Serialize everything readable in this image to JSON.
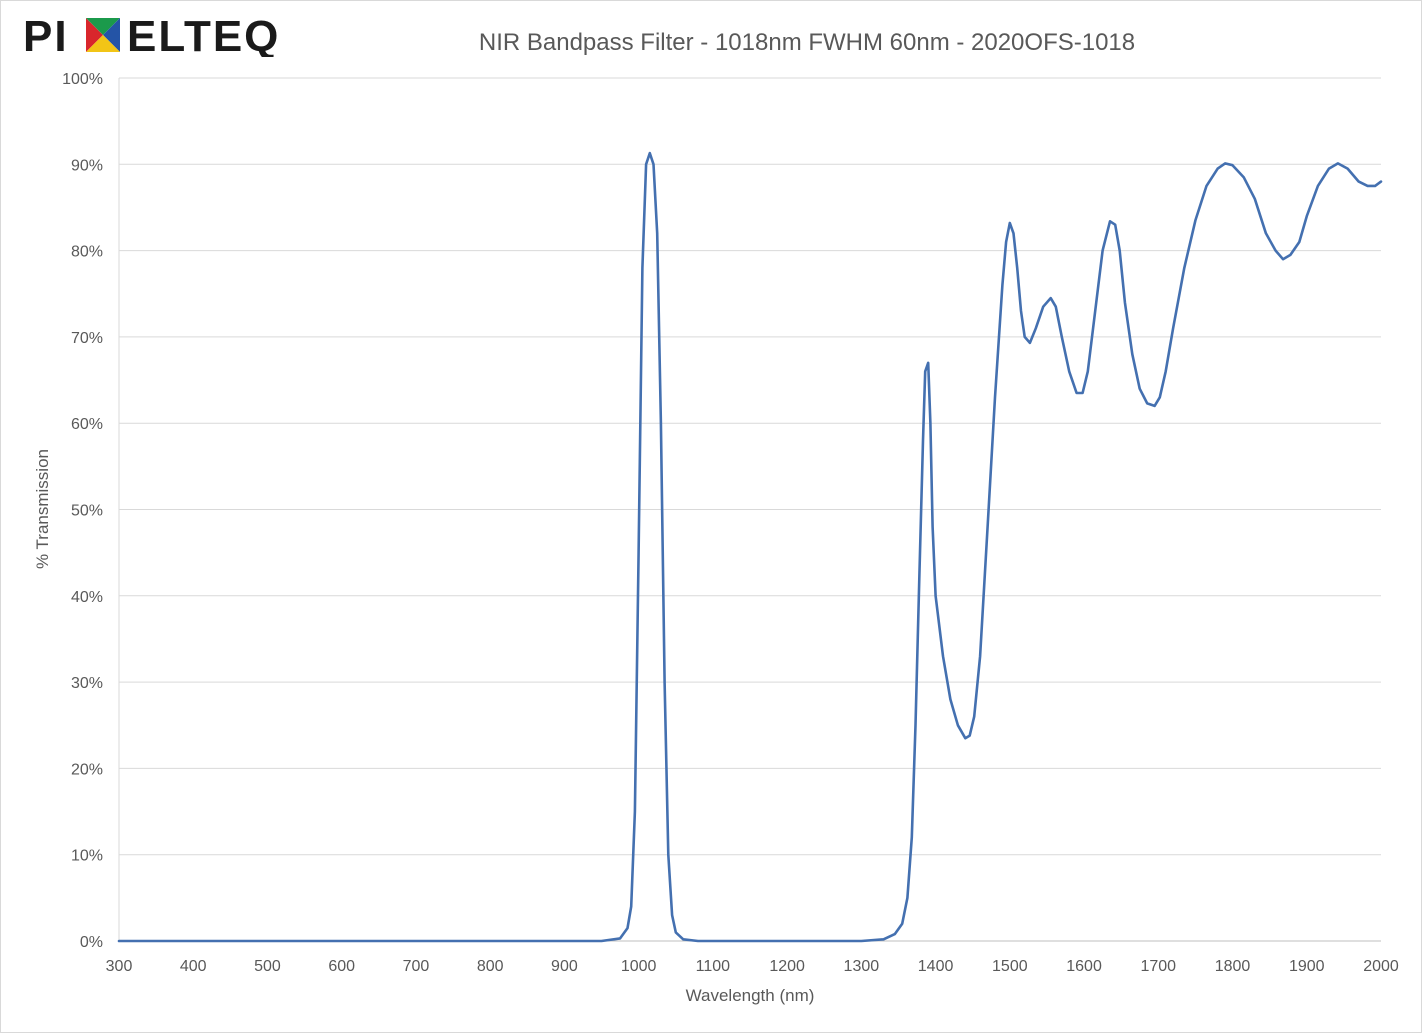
{
  "logo": {
    "text_left": "PI",
    "text_right": "ELTEQ",
    "x_colors": [
      "#d9262c",
      "#1b9a4b",
      "#2454a6",
      "#f2c516"
    ],
    "ink_color": "#1a1a1a"
  },
  "chart_data": {
    "type": "line",
    "title": "NIR Bandpass Filter - 1018nm FWHM 60nm - 2020OFS-1018",
    "xlabel": "Wavelength (nm)",
    "ylabel": "% Transmission",
    "xlim": [
      300,
      2000
    ],
    "ylim": [
      0,
      100
    ],
    "x_ticks": [
      300,
      400,
      500,
      600,
      700,
      800,
      900,
      1000,
      1100,
      1200,
      1300,
      1400,
      1500,
      1600,
      1700,
      1800,
      1900,
      2000
    ],
    "y_ticks": [
      "0%",
      "10%",
      "20%",
      "30%",
      "40%",
      "50%",
      "60%",
      "70%",
      "80%",
      "90%",
      "100%"
    ],
    "grid": "horizontal",
    "legend": "none",
    "line_color": "#4470b0",
    "series": [
      {
        "x": [
          300,
          400,
          500,
          600,
          700,
          800,
          860,
          900,
          950,
          975,
          985,
          990,
          995,
          1000,
          1005,
          1010,
          1015,
          1020,
          1025,
          1030,
          1035,
          1040,
          1045,
          1050,
          1060,
          1080,
          1100,
          1200,
          1300,
          1330,
          1345,
          1355,
          1362,
          1368,
          1373,
          1378,
          1383,
          1386,
          1390,
          1393,
          1396,
          1400,
          1410,
          1420,
          1430,
          1440,
          1446,
          1452,
          1460,
          1470,
          1480,
          1490,
          1495,
          1500,
          1505,
          1510,
          1515,
          1520,
          1527,
          1535,
          1545,
          1555,
          1562,
          1570,
          1580,
          1590,
          1598,
          1605,
          1615,
          1625,
          1635,
          1642,
          1648,
          1655,
          1665,
          1675,
          1685,
          1695,
          1702,
          1710,
          1720,
          1735,
          1750,
          1765,
          1780,
          1790,
          1800,
          1815,
          1830,
          1845,
          1858,
          1868,
          1878,
          1890,
          1900,
          1915,
          1930,
          1942,
          1955,
          1970,
          1982,
          1992,
          2000
        ],
        "y": [
          0,
          0,
          0,
          0,
          0,
          0,
          0,
          0,
          0,
          0.3,
          1.5,
          4,
          15,
          45,
          78,
          90,
          91.3,
          90,
          82,
          60,
          30,
          10,
          3,
          1,
          0.2,
          0,
          0,
          0,
          0,
          0.2,
          0.8,
          2,
          5,
          12,
          25,
          42,
          58,
          66,
          67,
          60,
          48,
          40,
          33,
          28,
          25,
          23.5,
          23.8,
          26,
          33,
          48,
          63,
          76,
          81,
          83.2,
          82,
          78,
          73,
          70,
          69.3,
          71,
          73.5,
          74.5,
          73.5,
          70,
          66,
          63.5,
          63.5,
          66,
          73,
          80,
          83.4,
          83,
          80,
          74,
          68,
          64,
          62.3,
          62,
          63,
          66,
          71,
          78,
          83.5,
          87.5,
          89.5,
          90.1,
          89.9,
          88.5,
          86,
          82,
          80,
          79,
          79.5,
          81,
          84,
          87.5,
          89.5,
          90.1,
          89.5,
          88,
          87.5,
          87.5,
          88
        ]
      }
    ]
  }
}
